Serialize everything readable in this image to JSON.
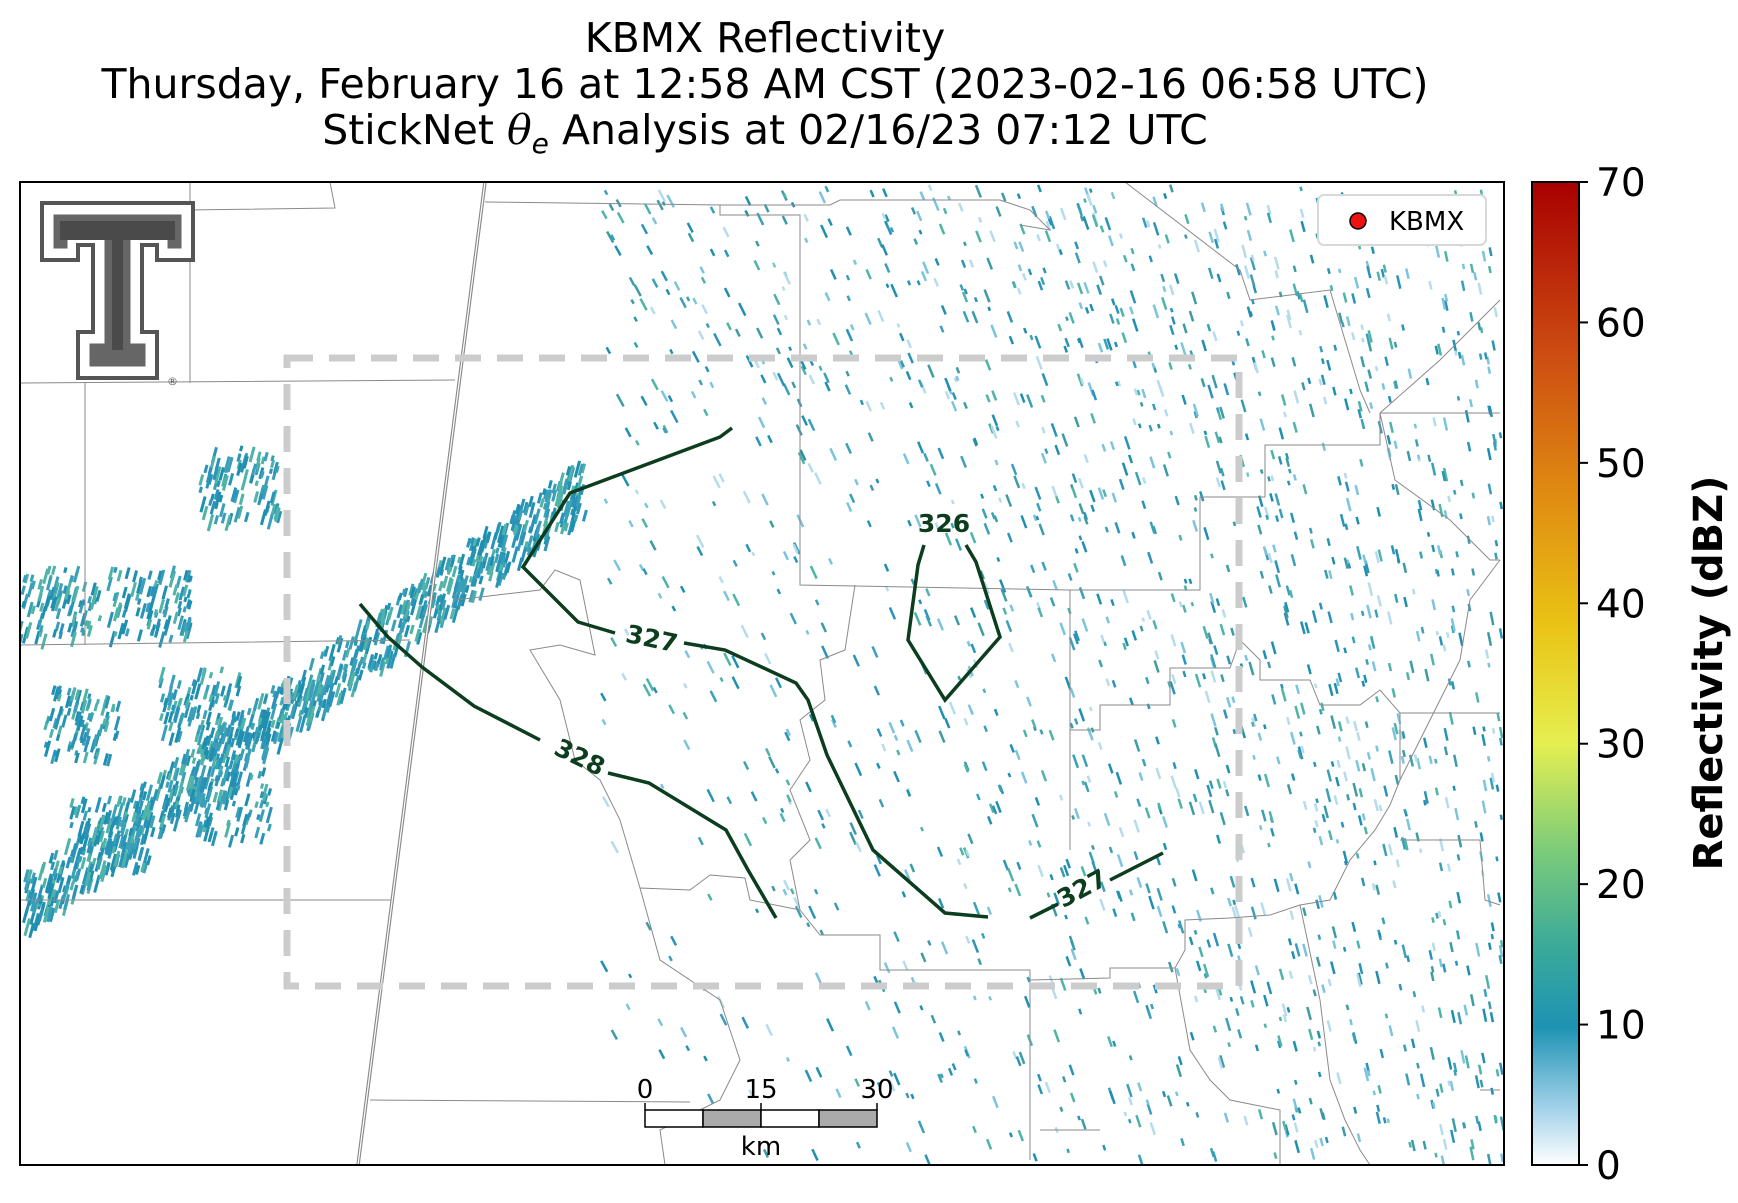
{
  "title": {
    "line1": "KBMX Reflectivity",
    "line2": "Thursday, February 16 at 12:58 AM CST (2023-02-16 06:58 UTC)",
    "line3_prefix": "StickNet ",
    "line3_theta": "θ",
    "line3_sub": "e",
    "line3_suffix": " Analysis at 02/16/23 07:12 UTC"
  },
  "legend": {
    "label": "KBMX",
    "marker_color": "#ee1111"
  },
  "logo": {
    "text": "T",
    "registered": "®"
  },
  "scalebar": {
    "ticks": [
      "0",
      "15",
      "30"
    ],
    "unit": "km"
  },
  "contours": [
    {
      "label": "326"
    },
    {
      "label": "327"
    },
    {
      "label": "327"
    },
    {
      "label": "328"
    }
  ],
  "colorbar": {
    "label": "Reflectivity (dBZ)",
    "ticks": [
      "0",
      "10",
      "20",
      "30",
      "40",
      "50",
      "60",
      "70"
    ],
    "colors": [
      "#ffffff",
      "#9fd0e8",
      "#1e93b3",
      "#3aa99a",
      "#7ccc7a",
      "#e6ef50",
      "#e9c315",
      "#e08c12",
      "#cc4a12",
      "#a80000"
    ]
  },
  "colors": {
    "contour": "#0b3d1e",
    "analysis_box": "#c8c8c8",
    "echo_primary": "#2a93b8",
    "echo_secondary": "#4fb3a8"
  }
}
